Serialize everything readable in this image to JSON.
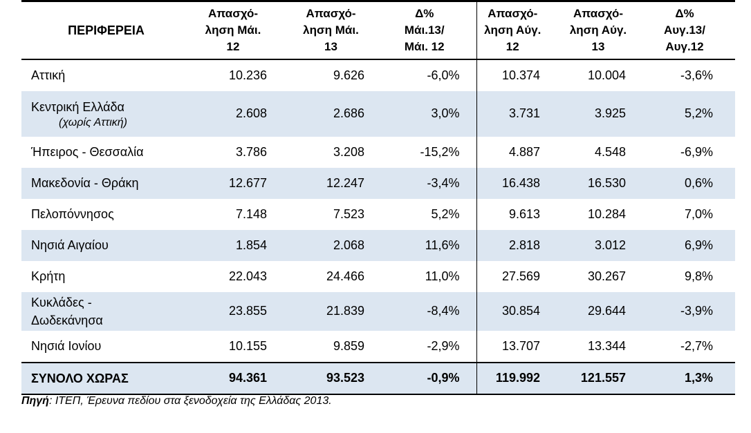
{
  "table": {
    "headers": {
      "region": "ΠΕΡΙΦΕΡΕΙΑ",
      "emp_may12": [
        "Απασχό-",
        "ληση Μάι.",
        "12"
      ],
      "emp_may13": [
        "Απασχό-",
        "ληση Μάι.",
        "13"
      ],
      "delta_may": [
        "Δ%",
        "Μάι.13/",
        "Μάι. 12"
      ],
      "emp_aug12": [
        "Απασχό-",
        "ληση Αύγ.",
        "12"
      ],
      "emp_aug13": [
        "Απασχό-",
        "ληση Αύγ.",
        "13"
      ],
      "delta_aug": [
        "Δ%",
        "Αυγ.13/",
        "Αυγ.12"
      ]
    },
    "rows": [
      {
        "region": "Αττική",
        "sub": "",
        "v": [
          "10.236",
          "9.626",
          "-6,0%",
          "10.374",
          "10.004",
          "-3,6%"
        ]
      },
      {
        "region": "Κεντρική Ελλάδα",
        "sub": "(χωρίς Αττική)",
        "v": [
          "2.608",
          "2.686",
          "3,0%",
          "3.731",
          "3.925",
          "5,2%"
        ]
      },
      {
        "region": "Ήπειρος - Θεσσαλία",
        "sub": "",
        "v": [
          "3.786",
          "3.208",
          "-15,2%",
          "4.887",
          "4.548",
          "-6,9%"
        ]
      },
      {
        "region": "Μακεδονία - Θράκη",
        "sub": "",
        "v": [
          "12.677",
          "12.247",
          "-3,4%",
          "16.438",
          "16.530",
          "0,6%"
        ]
      },
      {
        "region": "Πελοπόννησος",
        "sub": "",
        "v": [
          "7.148",
          "7.523",
          "5,2%",
          "9.613",
          "10.284",
          "7,0%"
        ]
      },
      {
        "region": "Νησιά Αιγαίου",
        "sub": "",
        "v": [
          "1.854",
          "2.068",
          "11,6%",
          "2.818",
          "3.012",
          "6,9%"
        ]
      },
      {
        "region": "Κρήτη",
        "sub": "",
        "v": [
          "22.043",
          "24.466",
          "11,0%",
          "27.569",
          "30.267",
          "9,8%"
        ]
      },
      {
        "region": "Κυκλάδες -",
        "sub": "Δωδεκάνησα",
        "v": [
          "23.855",
          "21.839",
          "-8,4%",
          "30.854",
          "29.644",
          "-3,9%"
        ]
      },
      {
        "region": "Νησιά Ιονίου",
        "sub": "",
        "v": [
          "10.155",
          "9.859",
          "-2,9%",
          "13.707",
          "13.344",
          "-2,7%"
        ]
      }
    ],
    "total": {
      "region": "ΣΥΝΟΛΟ ΧΩΡΑΣ",
      "v": [
        "94.361",
        "93.523",
        "-0,9%",
        "119.992",
        "121.557",
        "1,3%"
      ]
    }
  },
  "source": {
    "label": "Πηγή",
    "text": ": ΙΤΕΠ, Έρευνα πεδίου στα ξενοδοχεία της Ελλάδας 2013."
  },
  "colors": {
    "shade": "#dce6f1"
  }
}
